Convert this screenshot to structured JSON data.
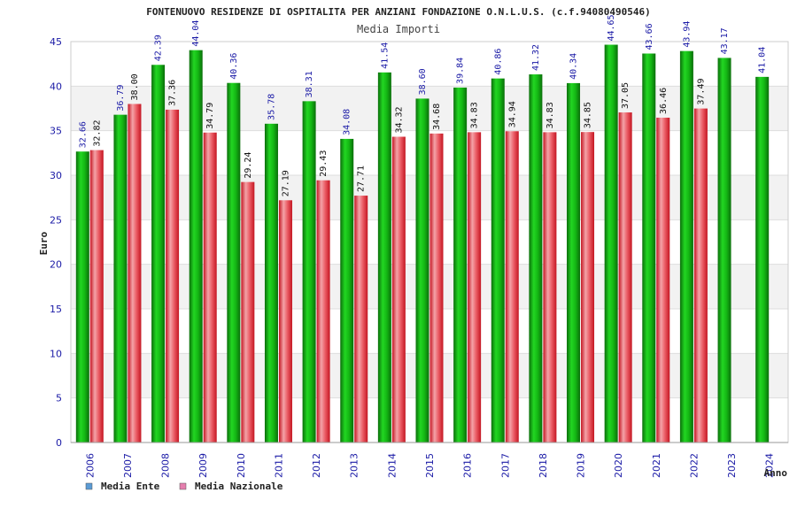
{
  "chart_data": {
    "type": "bar",
    "title": "FONTENUOVO RESIDENZE DI OSPITALITA PER ANZIANI FONDAZIONE O.N.L.U.S. (c.f.94080490546)",
    "subtitle": "Media Importi",
    "xlabel": "Anno",
    "ylabel": "Euro",
    "ylim": [
      0,
      45
    ],
    "yticks": [
      0,
      5,
      10,
      15,
      20,
      25,
      30,
      35,
      40,
      45
    ],
    "grid": true,
    "legend_position": "bottom-left",
    "categories": [
      "2006",
      "2007",
      "2008",
      "2009",
      "2010",
      "2011",
      "2012",
      "2013",
      "2014",
      "2015",
      "2016",
      "2017",
      "2018",
      "2019",
      "2020",
      "2021",
      "2022",
      "2023",
      "2024"
    ],
    "series": [
      {
        "name": "Media Ente",
        "color": "#12b312",
        "legend_color": "#5b9bd5",
        "values": [
          32.66,
          36.79,
          42.39,
          44.04,
          40.36,
          35.78,
          38.31,
          34.08,
          41.54,
          38.6,
          39.84,
          40.86,
          41.32,
          40.34,
          44.65,
          43.66,
          43.94,
          43.17,
          41.04
        ],
        "labels": [
          "32.66",
          "36.79",
          "42.39",
          "44.04",
          "40.36",
          "35.78",
          "38.31",
          "34.08",
          "41.54",
          "38.60",
          "39.84",
          "40.86",
          "41.32",
          "40.34",
          "44.65",
          "43.66",
          "43.94",
          "43.17",
          "41.04"
        ]
      },
      {
        "name": "Media Nazionale",
        "color": "#e8313c",
        "legend_color": "#e57fae",
        "values": [
          32.82,
          38.0,
          37.36,
          34.79,
          29.24,
          27.19,
          29.43,
          27.71,
          34.32,
          34.68,
          34.83,
          34.94,
          34.83,
          34.85,
          37.05,
          36.46,
          37.49,
          null,
          null
        ],
        "labels": [
          "32.82",
          "38.00",
          "37.36",
          "34.79",
          "29.24",
          "27.19",
          "29.43",
          "27.71",
          "34.32",
          "34.68",
          "34.83",
          "34.94",
          "34.83",
          "34.85",
          "37.05",
          "36.46",
          "37.49",
          null,
          null
        ]
      }
    ]
  }
}
